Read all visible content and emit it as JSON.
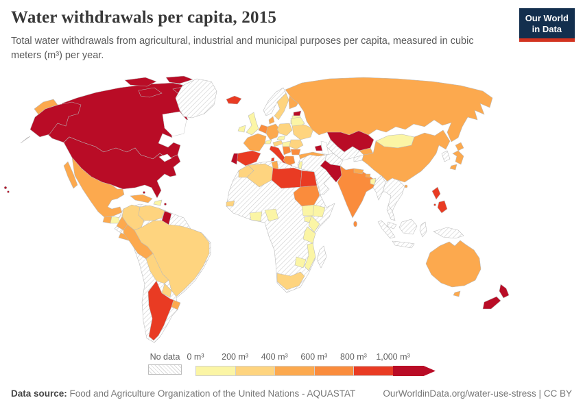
{
  "header": {
    "title": "Water withdrawals per capita, 2015",
    "subtitle": "Total water withdrawals from agricultural, industrial and municipal purposes per capita, measured in cubic meters (m³) per year.",
    "logo_line1": "Our World",
    "logo_line2": "in Data"
  },
  "legend": {
    "no_data_label": "No data"
  },
  "footer": {
    "datasource_label": "Data source:",
    "datasource_text": " Food and Agriculture Organization of the United Nations - AQUASTAT",
    "link_text": "OurWorldinData.org/water-use-stress | CC BY"
  },
  "chart_data": {
    "type": "choropleth_map",
    "title": "Water withdrawals per capita, 2015",
    "unit": "m³ per year",
    "tick_labels": [
      "0 m³",
      "200 m³",
      "400 m³",
      "600 m³",
      "800 m³",
      "1,000 m³"
    ],
    "bins": [
      {
        "range": "0–200",
        "color": "#FBF5A5"
      },
      {
        "range": "200–400",
        "color": "#FED47F"
      },
      {
        "range": "400–600",
        "color": "#FCA94E"
      },
      {
        "range": "600–800",
        "color": "#FA8C3C"
      },
      {
        "range": "800–1,000",
        "color": "#E93B23"
      },
      {
        "range": "1,000+",
        "color": "#B90C26"
      }
    ],
    "no_data": {
      "label": "No data",
      "pattern": "diagonal-hatch"
    },
    "countries": [
      {
        "id": "canada",
        "bin": 6
      },
      {
        "id": "usa",
        "bin": 6
      },
      {
        "id": "greenland",
        "bin": 0
      },
      {
        "id": "mexico",
        "bin": 3
      },
      {
        "id": "cuba",
        "bin": 3
      },
      {
        "id": "guatemala",
        "bin": 3
      },
      {
        "id": "honduras",
        "bin": 1
      },
      {
        "id": "nicaragua",
        "bin": 0
      },
      {
        "id": "costa-rica-panama",
        "bin": 3
      },
      {
        "id": "hispaniola",
        "bin": 1
      },
      {
        "id": "puerto-rico",
        "bin": 6
      },
      {
        "id": "trinidad",
        "bin": 6
      },
      {
        "id": "south-america-nodata",
        "bin": 0
      },
      {
        "id": "colombia",
        "bin": 2
      },
      {
        "id": "venezuela",
        "bin": 2
      },
      {
        "id": "guyana",
        "bin": 6
      },
      {
        "id": "brazil",
        "bin": 2
      },
      {
        "id": "ecuador",
        "bin": 3
      },
      {
        "id": "peru",
        "bin": 3
      },
      {
        "id": "bolivia",
        "bin": 2
      },
      {
        "id": "paraguay",
        "bin": 2
      },
      {
        "id": "uruguay",
        "bin": 3
      },
      {
        "id": "argentina",
        "bin": 5
      },
      {
        "id": "iceland",
        "bin": 5
      },
      {
        "id": "ireland",
        "bin": 1
      },
      {
        "id": "uk",
        "bin": 1
      },
      {
        "id": "norway",
        "bin": 0
      },
      {
        "id": "sweden",
        "bin": 2
      },
      {
        "id": "finland",
        "bin": 3
      },
      {
        "id": "estonia",
        "bin": 6
      },
      {
        "id": "latvia",
        "bin": 1
      },
      {
        "id": "lithuania",
        "bin": 1
      },
      {
        "id": "denmark",
        "bin": 3
      },
      {
        "id": "germany",
        "bin": 3
      },
      {
        "id": "benelux",
        "bin": 4
      },
      {
        "id": "poland",
        "bin": 2
      },
      {
        "id": "belarus",
        "bin": 1
      },
      {
        "id": "ukraine",
        "bin": 2
      },
      {
        "id": "france",
        "bin": 3
      },
      {
        "id": "switzerland",
        "bin": 1
      },
      {
        "id": "czechia",
        "bin": 1
      },
      {
        "id": "austria",
        "bin": 2
      },
      {
        "id": "hungary",
        "bin": 1
      },
      {
        "id": "romania",
        "bin": 2
      },
      {
        "id": "spain",
        "bin": 5
      },
      {
        "id": "portugal",
        "bin": 6
      },
      {
        "id": "italy",
        "bin": 5
      },
      {
        "id": "balkans",
        "bin": 4
      },
      {
        "id": "bulgaria",
        "bin": 4
      },
      {
        "id": "greece",
        "bin": 4
      },
      {
        "id": "turkey",
        "bin": 3
      },
      {
        "id": "russia",
        "bin": 3
      },
      {
        "id": "kazakhstan",
        "bin": 6
      },
      {
        "id": "azerbaijan",
        "bin": 6
      },
      {
        "id": "central-asia-nodata",
        "bin": 0
      },
      {
        "id": "kyrgyzstan",
        "bin": 3
      },
      {
        "id": "tajikistan",
        "bin": 0
      },
      {
        "id": "mongolia",
        "bin": 1
      },
      {
        "id": "china",
        "bin": 3
      },
      {
        "id": "korea",
        "bin": 0
      },
      {
        "id": "japan",
        "bin": 3
      },
      {
        "id": "afghanistan",
        "bin": 0
      },
      {
        "id": "pakistan",
        "bin": 6
      },
      {
        "id": "india",
        "bin": 4
      },
      {
        "id": "nepal",
        "bin": 3
      },
      {
        "id": "bhutan",
        "bin": 3
      },
      {
        "id": "bangladesh",
        "bin": 1
      },
      {
        "id": "sri-lanka",
        "bin": 4
      },
      {
        "id": "myanmar",
        "bin": 0
      },
      {
        "id": "indochina",
        "bin": 0
      },
      {
        "id": "malay-peninsula",
        "bin": 0
      },
      {
        "id": "malaysia",
        "bin": 0
      },
      {
        "id": "indonesia",
        "bin": 0
      },
      {
        "id": "new-guinea",
        "bin": 0
      },
      {
        "id": "philippines",
        "bin": 5
      },
      {
        "id": "middle-east-nodata",
        "bin": 0
      },
      {
        "id": "israel",
        "bin": 1
      },
      {
        "id": "africa-nodata",
        "bin": 0
      },
      {
        "id": "morocco",
        "bin": 2
      },
      {
        "id": "algeria",
        "bin": 2
      },
      {
        "id": "tunisia",
        "bin": 3
      },
      {
        "id": "libya",
        "bin": 5
      },
      {
        "id": "egypt",
        "bin": 5
      },
      {
        "id": "senegal",
        "bin": 2
      },
      {
        "id": "ghana-cote",
        "bin": 1
      },
      {
        "id": "nigeria",
        "bin": 1
      },
      {
        "id": "sudan",
        "bin": 4
      },
      {
        "id": "ethiopia",
        "bin": 1
      },
      {
        "id": "south-sudan",
        "bin": 1
      },
      {
        "id": "uganda",
        "bin": 1
      },
      {
        "id": "kenya",
        "bin": 1
      },
      {
        "id": "tanzania",
        "bin": 1
      },
      {
        "id": "zimbabwe",
        "bin": 1
      },
      {
        "id": "mozambique",
        "bin": 1
      },
      {
        "id": "south-africa",
        "bin": 2
      },
      {
        "id": "madagascar",
        "bin": 0
      },
      {
        "id": "australia",
        "bin": 3
      },
      {
        "id": "new-zealand",
        "bin": 6
      }
    ]
  }
}
